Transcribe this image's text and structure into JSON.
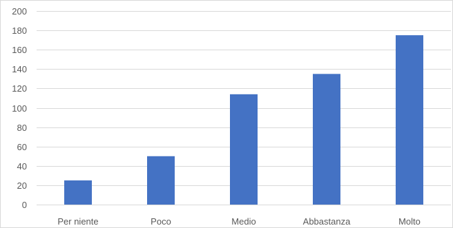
{
  "chart_data": {
    "type": "bar",
    "categories": [
      "Per niente",
      "Poco",
      "Medio",
      "Abbastanza",
      "Molto"
    ],
    "values": [
      25,
      50,
      114,
      135,
      175
    ],
    "title": "",
    "xlabel": "",
    "ylabel": "",
    "ylim": [
      0,
      200
    ],
    "yticks": [
      0,
      20,
      40,
      60,
      80,
      100,
      120,
      140,
      160,
      180,
      200
    ],
    "grid": true,
    "legend": "none",
    "bar_color": "#4472c4",
    "grid_color": "#d9d9d9"
  }
}
